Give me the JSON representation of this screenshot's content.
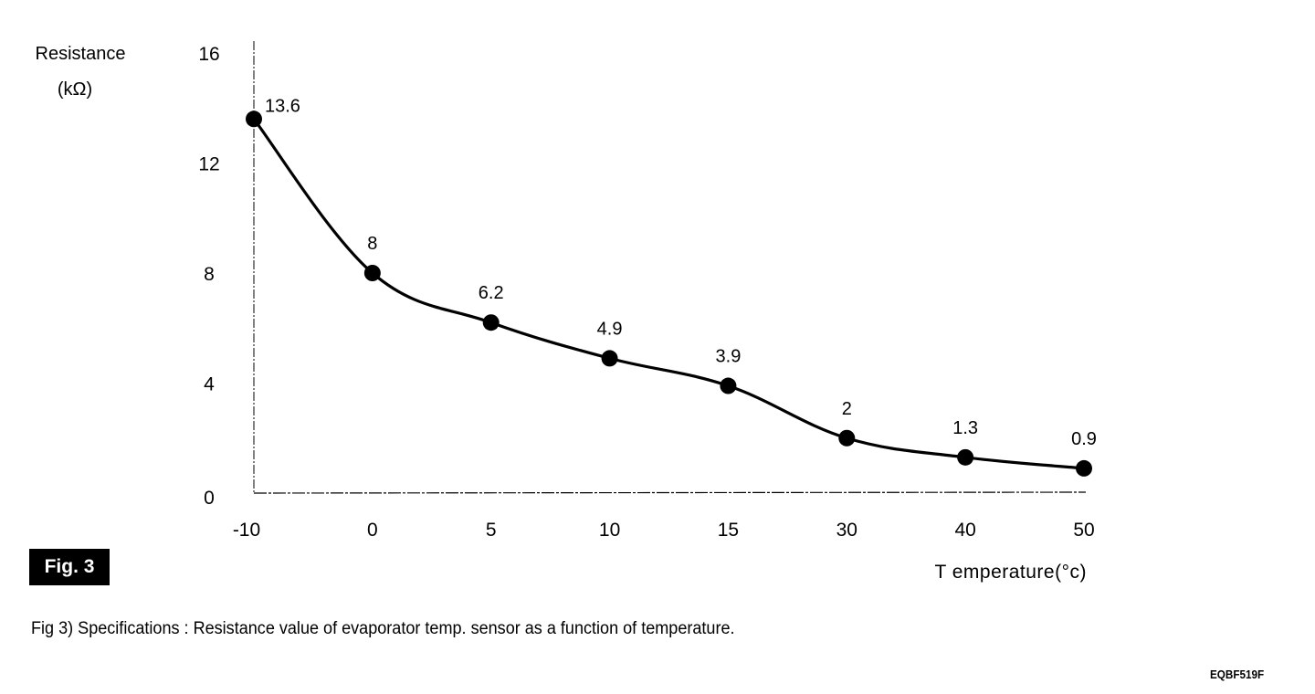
{
  "chart_data": {
    "type": "line",
    "title": "",
    "ylabel_line1": "Resistance",
    "ylabel_line2": "(kΩ)",
    "xlabel": "T emperature(°c)",
    "categories": [
      "-10",
      "0",
      "5",
      "10",
      "15",
      "30",
      "40",
      "50"
    ],
    "x_scale": "categorical (evenly spaced)",
    "series": [
      {
        "name": "Resistance",
        "values": [
          13.6,
          8,
          6.2,
          4.9,
          3.9,
          2,
          1.3,
          0.9
        ],
        "data_labels": [
          "13.6",
          "8",
          "6.2",
          "4.9",
          "3.9",
          "2",
          "1.3",
          "0.9"
        ],
        "marker": "filled-circle",
        "line": "smooth",
        "color": "#000000"
      }
    ],
    "yticks": [
      0,
      4,
      8,
      12,
      16
    ],
    "ytick_labels": [
      "0",
      "4",
      "8",
      "12",
      "16"
    ],
    "ylim": [
      0,
      16
    ],
    "grid": false,
    "legend": "none"
  },
  "figure": {
    "badge": "Fig. 3",
    "caption": "Fig 3) Specifications : Resistance value of evaporator temp. sensor as a function of temperature.",
    "code": "EQBF519F"
  }
}
